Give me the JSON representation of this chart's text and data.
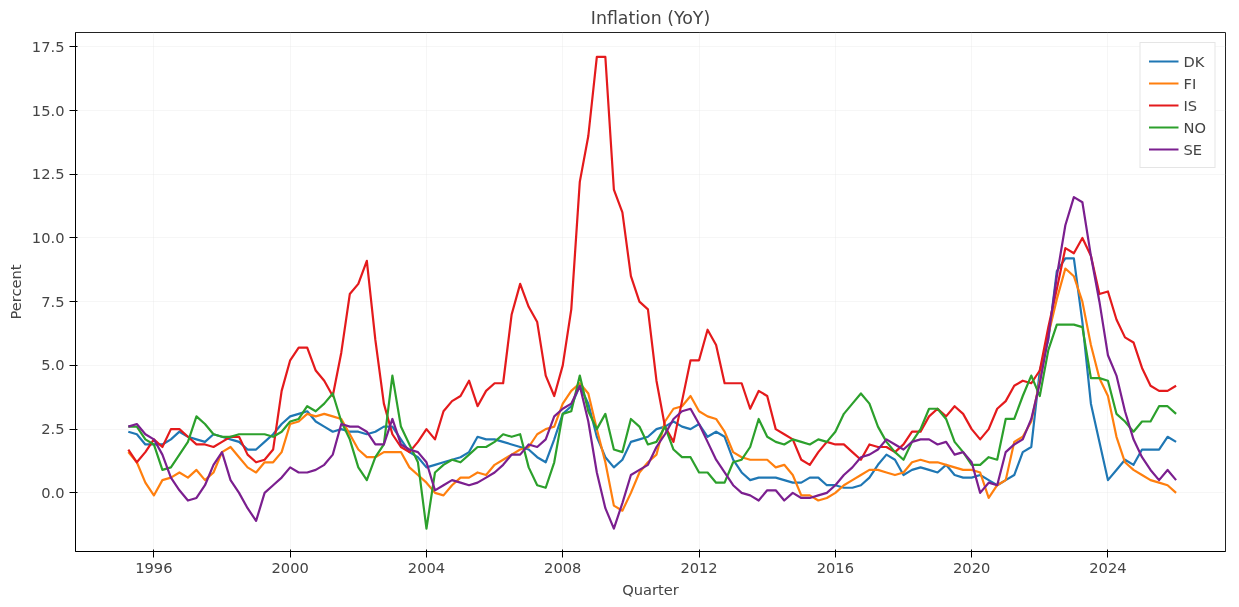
{
  "chart_data": {
    "type": "line",
    "title": "Inflation (YoY)",
    "xlabel": "Quarter",
    "ylabel": "Percent",
    "x": [
      1995.25,
      1995.5,
      1995.75,
      1996,
      1996.25,
      1996.5,
      1996.75,
      1997,
      1997.25,
      1997.5,
      1997.75,
      1998,
      1998.25,
      1998.5,
      1998.75,
      1999,
      1999.25,
      1999.5,
      1999.75,
      2000,
      2000.25,
      2000.5,
      2000.75,
      2001,
      2001.25,
      2001.5,
      2001.75,
      2002,
      2002.25,
      2002.5,
      2002.75,
      2003,
      2003.25,
      2003.5,
      2003.75,
      2004,
      2004.25,
      2004.5,
      2004.75,
      2005,
      2005.25,
      2005.5,
      2005.75,
      2006,
      2006.25,
      2006.5,
      2006.75,
      2007,
      2007.25,
      2007.5,
      2007.75,
      2008,
      2008.25,
      2008.5,
      2008.75,
      2009,
      2009.25,
      2009.5,
      2009.75,
      2010,
      2010.25,
      2010.5,
      2010.75,
      2011,
      2011.25,
      2011.5,
      2011.75,
      2012,
      2012.25,
      2012.5,
      2012.75,
      2013,
      2013.25,
      2013.5,
      2013.75,
      2014,
      2014.25,
      2014.5,
      2014.75,
      2015,
      2015.25,
      2015.5,
      2015.75,
      2016,
      2016.25,
      2016.5,
      2016.75,
      2017,
      2017.25,
      2017.5,
      2017.75,
      2018,
      2018.25,
      2018.5,
      2018.75,
      2019,
      2019.25,
      2019.5,
      2019.75,
      2020,
      2020.25,
      2020.5,
      2020.75,
      2021,
      2021.25,
      2021.5,
      2021.75,
      2022,
      2022.25,
      2022.5,
      2022.75,
      2023,
      2023.25,
      2023.5,
      2023.75,
      2024,
      2024.25,
      2024.5,
      2024.75,
      2025,
      2025.25,
      2025.5,
      2025.75,
      2026
    ],
    "series": [
      {
        "name": "DK",
        "color": "#1f77b4",
        "values": [
          2.4,
          2.3,
          1.9,
          1.9,
          1.9,
          2.1,
          2.4,
          2.2,
          2.1,
          2.0,
          2.3,
          2.2,
          2.1,
          2.0,
          1.7,
          1.7,
          2.0,
          2.3,
          2.7,
          3.0,
          3.1,
          3.2,
          2.8,
          2.6,
          2.4,
          2.5,
          2.4,
          2.4,
          2.3,
          2.4,
          2.6,
          2.6,
          2.1,
          1.6,
          1.4,
          1.0,
          1.1,
          1.2,
          1.3,
          1.4,
          1.6,
          2.2,
          2.1,
          2.1,
          2.0,
          1.9,
          1.8,
          1.7,
          1.4,
          1.2,
          2.1,
          3.1,
          3.4,
          4.2,
          3.5,
          2.2,
          1.4,
          1.0,
          1.3,
          2.0,
          2.1,
          2.2,
          2.5,
          2.6,
          2.8,
          2.6,
          2.5,
          2.7,
          2.2,
          2.4,
          2.2,
          1.3,
          0.8,
          0.5,
          0.6,
          0.6,
          0.6,
          0.5,
          0.4,
          0.4,
          0.6,
          0.6,
          0.3,
          0.3,
          0.2,
          0.2,
          0.3,
          0.6,
          1.1,
          1.5,
          1.3,
          0.7,
          0.9,
          1.0,
          0.9,
          0.8,
          1.1,
          0.7,
          0.6,
          0.6,
          0.7,
          0.5,
          0.3,
          0.5,
          0.7,
          1.6,
          1.8,
          4.8,
          6.0,
          8.7,
          9.2,
          9.2,
          6.7,
          3.5,
          2.0,
          0.5,
          0.9,
          1.3,
          1.1,
          1.7,
          1.7,
          1.7,
          2.2,
          2.0
        ]
      },
      {
        "name": "FI",
        "color": "#ff7f0e",
        "values": [
          1.6,
          1.2,
          0.4,
          -0.1,
          0.5,
          0.6,
          0.8,
          0.6,
          0.9,
          0.5,
          0.8,
          1.6,
          1.8,
          1.4,
          1.0,
          0.8,
          1.2,
          1.2,
          1.6,
          2.7,
          2.8,
          3.1,
          3.0,
          3.1,
          3.0,
          2.9,
          2.3,
          1.7,
          1.4,
          1.4,
          1.6,
          1.6,
          1.6,
          1.0,
          0.7,
          0.4,
          0.0,
          -0.1,
          0.3,
          0.6,
          0.6,
          0.8,
          0.7,
          1.1,
          1.3,
          1.5,
          1.7,
          1.8,
          2.3,
          2.5,
          2.6,
          3.5,
          4.0,
          4.3,
          3.9,
          2.5,
          1.2,
          -0.5,
          -0.7,
          0.0,
          0.8,
          1.2,
          1.5,
          2.8,
          3.3,
          3.4,
          3.8,
          3.2,
          3.0,
          2.9,
          2.4,
          1.6,
          1.4,
          1.3,
          1.3,
          1.3,
          1.0,
          1.1,
          0.7,
          -0.1,
          -0.1,
          -0.3,
          -0.2,
          0.0,
          0.3,
          0.5,
          0.7,
          0.9,
          0.9,
          0.8,
          0.7,
          0.8,
          1.2,
          1.3,
          1.2,
          1.2,
          1.1,
          1.0,
          0.9,
          0.9,
          0.8,
          -0.2,
          0.3,
          0.5,
          2.0,
          2.2,
          2.8,
          4.4,
          6.2,
          7.6,
          8.8,
          8.5,
          7.5,
          5.8,
          4.5,
          3.8,
          2.2,
          1.2,
          0.9,
          0.7,
          0.5,
          0.4,
          0.3,
          0.0
        ]
      },
      {
        "name": "IS",
        "color": "#e41a1c",
        "values": [
          1.7,
          1.2,
          1.6,
          2.1,
          1.8,
          2.5,
          2.5,
          2.2,
          1.9,
          1.9,
          1.8,
          2.0,
          2.2,
          2.2,
          1.5,
          1.2,
          1.3,
          1.7,
          4.0,
          5.2,
          5.7,
          5.7,
          4.8,
          4.4,
          3.8,
          5.5,
          7.8,
          8.2,
          9.1,
          6.0,
          3.5,
          2.3,
          1.8,
          1.6,
          2.0,
          2.5,
          2.1,
          3.2,
          3.6,
          3.8,
          4.4,
          3.4,
          4.0,
          4.3,
          4.3,
          7.0,
          8.2,
          7.3,
          6.7,
          4.6,
          3.8,
          5.0,
          7.2,
          12.2,
          14.0,
          17.1,
          17.1,
          11.9,
          11.0,
          8.5,
          7.5,
          7.2,
          4.4,
          2.6,
          2.0,
          3.6,
          5.2,
          5.2,
          6.4,
          5.8,
          4.3,
          4.3,
          4.3,
          3.3,
          4.0,
          3.8,
          2.5,
          2.3,
          2.1,
          1.3,
          1.1,
          1.6,
          2.0,
          1.9,
          1.9,
          1.6,
          1.3,
          1.9,
          1.8,
          1.8,
          1.6,
          1.9,
          2.4,
          2.4,
          3.0,
          3.3,
          3.0,
          3.4,
          3.1,
          2.5,
          2.1,
          2.5,
          3.3,
          3.6,
          4.2,
          4.4,
          4.3,
          4.8,
          6.5,
          8.0,
          9.6,
          9.4,
          10.0,
          9.3,
          7.8,
          7.9,
          6.8,
          6.1,
          5.9,
          4.9,
          4.2,
          4.0,
          4.0,
          4.2
        ]
      },
      {
        "name": "NO",
        "color": "#2ca02c",
        "values": [
          2.6,
          2.6,
          2.1,
          1.9,
          0.9,
          1.0,
          1.5,
          2.0,
          3.0,
          2.7,
          2.3,
          2.2,
          2.2,
          2.3,
          2.3,
          2.3,
          2.3,
          2.2,
          2.4,
          2.8,
          2.9,
          3.4,
          3.2,
          3.5,
          3.9,
          2.8,
          2.1,
          1.0,
          0.5,
          1.4,
          1.9,
          4.6,
          2.6,
          1.9,
          1.2,
          -1.4,
          0.8,
          1.1,
          1.3,
          1.2,
          1.5,
          1.8,
          1.8,
          2.0,
          2.3,
          2.2,
          2.3,
          1.0,
          0.3,
          0.2,
          1.2,
          3.1,
          3.2,
          4.6,
          3.2,
          2.5,
          3.1,
          1.7,
          1.6,
          2.9,
          2.6,
          1.9,
          2.0,
          2.6,
          1.7,
          1.4,
          1.4,
          0.8,
          0.8,
          0.4,
          0.4,
          1.2,
          1.3,
          1.8,
          2.9,
          2.2,
          2.0,
          1.9,
          2.1,
          2.0,
          1.9,
          2.1,
          2.0,
          2.4,
          3.1,
          3.5,
          3.9,
          3.5,
          2.6,
          2.0,
          1.6,
          1.3,
          2.0,
          2.5,
          3.3,
          3.3,
          2.9,
          2.0,
          1.6,
          1.1,
          1.1,
          1.4,
          1.3,
          2.9,
          2.9,
          3.8,
          4.6,
          3.8,
          5.6,
          6.6,
          6.6,
          6.6,
          6.5,
          4.5,
          4.5,
          4.4,
          3.1,
          2.8,
          2.4,
          2.8,
          2.8,
          3.4,
          3.4,
          3.1
        ]
      },
      {
        "name": "SE",
        "color": "#7b1f8f",
        "values": [
          2.6,
          2.7,
          2.3,
          2.1,
          1.5,
          0.6,
          0.1,
          -0.3,
          -0.2,
          0.3,
          1.1,
          1.6,
          0.5,
          0.0,
          -0.6,
          -1.1,
          0.0,
          0.3,
          0.6,
          1.0,
          0.8,
          0.8,
          0.9,
          1.1,
          1.5,
          2.7,
          2.6,
          2.6,
          2.4,
          1.9,
          1.9,
          2.9,
          1.9,
          1.7,
          1.6,
          1.2,
          0.1,
          0.3,
          0.5,
          0.4,
          0.3,
          0.4,
          0.6,
          0.8,
          1.1,
          1.5,
          1.5,
          1.9,
          1.8,
          2.1,
          3.0,
          3.3,
          3.5,
          4.2,
          2.8,
          0.8,
          -0.6,
          -1.4,
          -0.4,
          0.7,
          0.9,
          1.1,
          1.8,
          2.3,
          2.9,
          3.2,
          3.3,
          2.7,
          2.0,
          1.3,
          0.8,
          0.3,
          0.0,
          -0.1,
          -0.3,
          0.1,
          0.1,
          -0.3,
          0.0,
          -0.2,
          -0.2,
          -0.1,
          0.0,
          0.3,
          0.7,
          1.0,
          1.4,
          1.5,
          1.7,
          2.1,
          1.9,
          1.7,
          2.0,
          2.1,
          2.1,
          1.9,
          2.0,
          1.5,
          1.6,
          1.2,
          0.0,
          0.4,
          0.3,
          1.6,
          1.9,
          2.1,
          2.9,
          4.3,
          6.1,
          8.5,
          10.5,
          11.6,
          11.4,
          9.3,
          7.5,
          5.4,
          4.6,
          3.2,
          2.1,
          1.4,
          0.9,
          0.5,
          0.9,
          0.5
        ]
      }
    ],
    "xlim": [
      1993.7,
      2027.45
    ],
    "ylim": [
      -2.3,
      18.06
    ],
    "xticks": [
      1996,
      2000,
      2004,
      2008,
      2012,
      2016,
      2020,
      2024
    ],
    "yticks": [
      {
        "value": 0,
        "label": "0.0"
      },
      {
        "value": 2.5,
        "label": "2.5"
      },
      {
        "value": 5,
        "label": "5.0"
      },
      {
        "value": 7.5,
        "label": "7.5"
      },
      {
        "value": 10,
        "label": "10.0"
      },
      {
        "value": 12.5,
        "label": "12.5"
      },
      {
        "value": 15,
        "label": "15.0"
      },
      {
        "value": 17.5,
        "label": "17.5"
      }
    ],
    "grid": true,
    "legend": "top right",
    "marker": "none",
    "line_style": "solid"
  }
}
